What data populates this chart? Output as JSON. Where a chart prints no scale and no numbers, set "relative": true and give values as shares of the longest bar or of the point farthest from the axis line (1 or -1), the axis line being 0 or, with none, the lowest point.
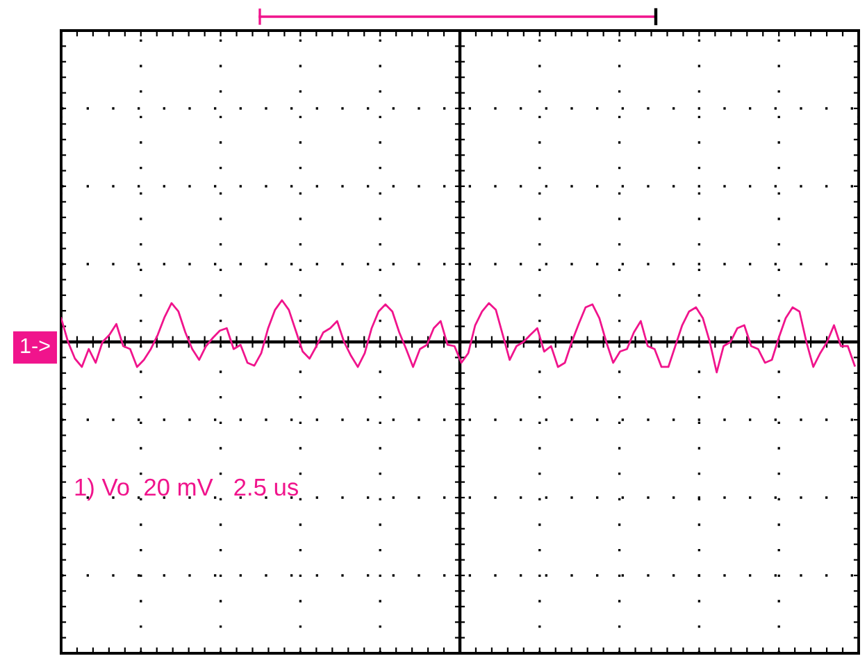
{
  "chart_data": {
    "type": "line",
    "relative": true,
    "grid": true,
    "tick_labels": false,
    "line_style": "solid",
    "marker": "none",
    "annotations": [
      "1->",
      "1) Vo  20 mV   2.5 us"
    ],
    "categories": [
      null,
      null,
      null,
      null,
      null,
      null,
      null,
      null,
      null,
      null,
      null,
      null,
      null,
      null,
      null,
      null,
      null,
      null,
      null,
      null,
      null,
      null,
      null,
      null,
      null,
      null,
      null,
      null,
      null,
      null,
      null,
      null,
      null,
      null,
      null,
      null,
      null,
      null,
      null,
      null,
      null,
      null,
      null,
      null,
      null,
      null,
      null,
      null,
      null,
      null,
      null,
      null,
      null,
      null,
      null,
      null,
      null,
      null,
      null,
      null,
      null,
      null,
      null,
      null,
      null,
      null,
      null,
      null,
      null,
      null,
      null,
      null,
      null,
      null,
      null,
      null,
      null,
      null,
      null,
      null,
      null,
      null,
      null,
      null,
      null,
      null,
      null,
      null,
      null,
      null,
      null,
      null,
      null,
      null,
      null,
      null,
      null,
      null,
      null,
      null,
      null,
      null,
      null,
      null,
      null,
      null,
      null,
      null,
      null,
      null,
      null,
      null,
      null,
      null,
      null,
      null
    ],
    "series": [
      {
        "color": "#f0148c",
        "values": [
          0.57,
          0,
          -0.4,
          -0.6,
          -0.17,
          -0.5,
          0,
          0.17,
          0.43,
          -0.1,
          -0.17,
          -0.6,
          -0.43,
          -0.17,
          0.17,
          0.6,
          0.93,
          0.73,
          0.23,
          -0.17,
          -0.43,
          -0.1,
          0.1,
          0.27,
          0.33,
          -0.17,
          -0.07,
          -0.5,
          -0.57,
          -0.27,
          0.33,
          0.77,
          1,
          0.77,
          0.27,
          -0.23,
          -0.4,
          -0.1,
          0.23,
          0.33,
          0.5,
          0,
          -0.33,
          -0.6,
          -0.27,
          0.33,
          0.73,
          0.9,
          0.73,
          0.23,
          -0.17,
          -0.6,
          -0.17,
          -0.07,
          0.33,
          0.5,
          -0.07,
          -0.1,
          -0.5,
          -0.27,
          0.4,
          0.73,
          0.93,
          0.77,
          0.17,
          -0.43,
          -0.1,
          0,
          0.17,
          0.33,
          -0.23,
          -0.1,
          -0.6,
          -0.5,
          0,
          0.43,
          0.83,
          0.9,
          0.57,
          0,
          -0.5,
          -0.23,
          -0.17,
          0.23,
          0.5,
          -0.1,
          -0.17,
          -0.6,
          -0.6,
          -0.1,
          0.4,
          0.73,
          0.83,
          0.57,
          0,
          -0.73,
          -0.1,
          0,
          0.33,
          0.4,
          -0.1,
          -0.17,
          -0.5,
          -0.43,
          0.1,
          0.57,
          0.83,
          0.73,
          0,
          -0.6,
          -0.27,
          0,
          0.4,
          -0.1,
          -0.1,
          -0.57
        ]
      }
    ]
  }
}
